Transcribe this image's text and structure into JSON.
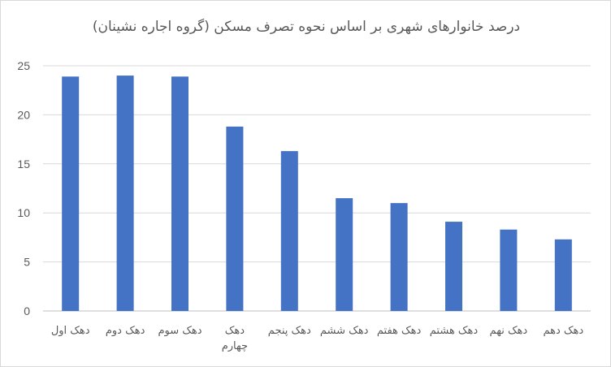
{
  "chart_data": {
    "type": "bar",
    "title": "درصد خانوارهای شهری بر اساس نحوه تصرف مسکن (گروه اجاره نشینان)",
    "xlabel": "",
    "ylabel": "",
    "categories": [
      [
        "دهک اول"
      ],
      [
        "دهک دوم"
      ],
      [
        "دهک سوم"
      ],
      [
        "دهک",
        "چهارم"
      ],
      [
        "دهک پنجم"
      ],
      [
        "دهک ششم"
      ],
      [
        "دهک هفتم"
      ],
      [
        "دهک هشتم"
      ],
      [
        "دهک نهم"
      ],
      [
        "دهک دهم"
      ]
    ],
    "values": [
      23.9,
      24.0,
      23.9,
      18.8,
      16.3,
      11.5,
      11.0,
      9.1,
      8.3,
      7.3
    ],
    "ylim": [
      0,
      25
    ],
    "yticks": [
      "0",
      "5",
      "10",
      "15",
      "20",
      "25"
    ],
    "grid": true,
    "bar_color": "#4472c4"
  }
}
